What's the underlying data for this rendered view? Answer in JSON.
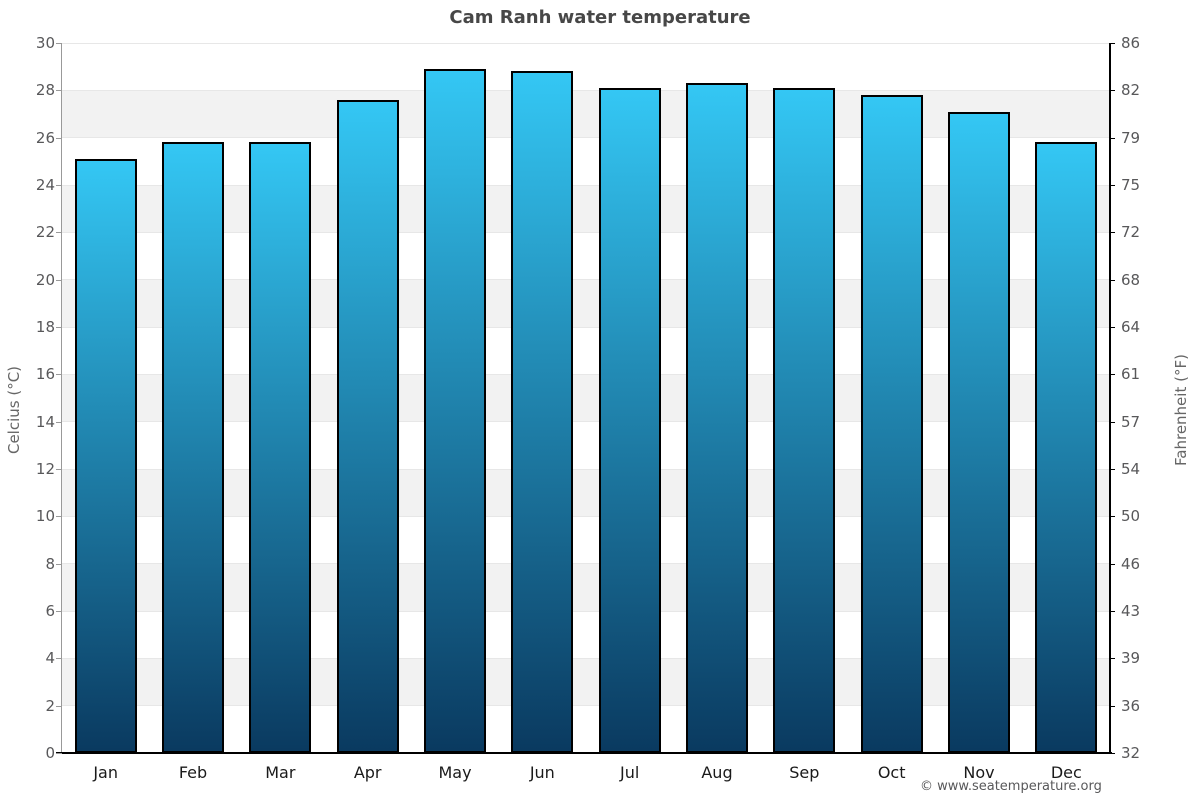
{
  "title": "Cam Ranh water temperature",
  "footer": {
    "credit": "© www.seatemperature.org"
  },
  "chart_data": {
    "type": "bar",
    "title": "Cam Ranh water temperature",
    "categories": [
      "Jan",
      "Feb",
      "Mar",
      "Apr",
      "May",
      "Jun",
      "Jul",
      "Aug",
      "Sep",
      "Oct",
      "Nov",
      "Dec"
    ],
    "values": [
      25.1,
      25.8,
      25.8,
      27.6,
      28.9,
      28.8,
      28.1,
      28.3,
      28.1,
      27.8,
      27.1,
      25.8
    ],
    "series_name": "Water temperature",
    "xlabel": "",
    "ylabel_left": "Celcius (°C)",
    "ylabel_right": "Fahrenheit (°F)",
    "ylim": [
      0,
      30
    ],
    "ytick_step": 2,
    "yticks_celsius": [
      0,
      2,
      4,
      6,
      8,
      10,
      12,
      14,
      16,
      18,
      20,
      22,
      24,
      26,
      28,
      30
    ],
    "yticks_fahrenheit": [
      32,
      36,
      39,
      43,
      46,
      50,
      54,
      57,
      61,
      64,
      68,
      72,
      75,
      79,
      82,
      86
    ],
    "grid": "horizontal alternating bands every 2°C",
    "legend": "none"
  },
  "colors": {
    "bar_top": "#34C7F4",
    "bar_bottom": "#0A3A60",
    "bar_border": "#000000",
    "band_grey": "#F2F2F2",
    "band_white": "#FFFFFF",
    "gridline": "#E7E7E7",
    "title_text": "#474747",
    "tick_text": "#58585A",
    "axis_title_text": "#666666",
    "month_text": "#1A1A1A",
    "footer_text": "#58585A",
    "xaxis_line": "#000000",
    "yaxis_line_left": "#999999",
    "yaxis_line_right": "#000000"
  }
}
